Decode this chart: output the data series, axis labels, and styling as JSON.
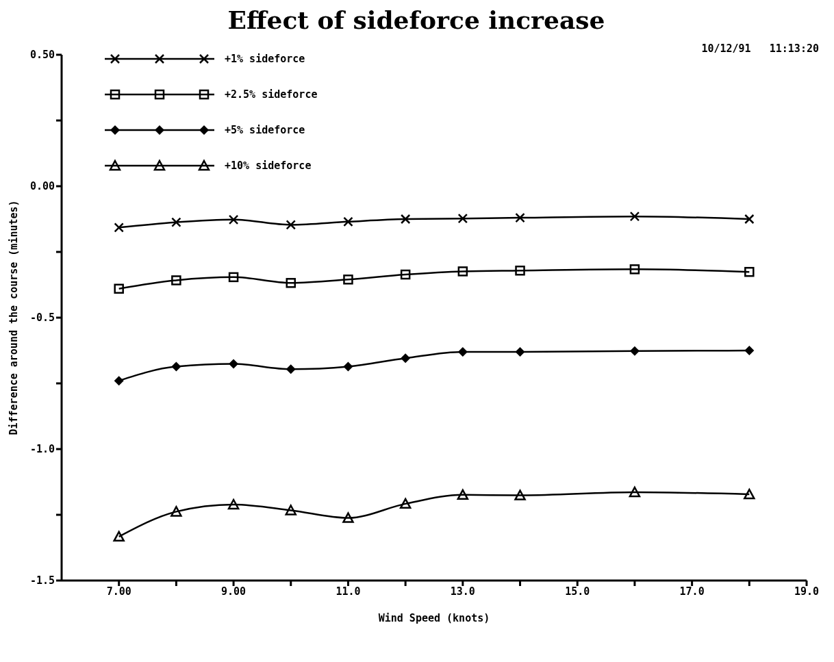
{
  "chart_data": {
    "type": "line",
    "title": "Effect of sideforce increase",
    "annotations": [
      "10/12/91   11:13:20"
    ],
    "xlabel": "Wind Speed (knots)",
    "ylabel": "Difference around the course (minutes)",
    "x": [
      7,
      8,
      9,
      10,
      11,
      12,
      13,
      14,
      16,
      18
    ],
    "series": [
      {
        "name": "+1% sideforce",
        "color": "#000000",
        "marker": "cross",
        "values": [
          -0.157,
          -0.137,
          -0.127,
          -0.147,
          -0.135,
          -0.125,
          -0.123,
          -0.12,
          -0.115,
          -0.125
        ]
      },
      {
        "name": "+2.5% sideforce",
        "color": "#000000",
        "marker": "square",
        "values": [
          -0.39,
          -0.358,
          -0.346,
          -0.368,
          -0.355,
          -0.336,
          -0.324,
          -0.321,
          -0.316,
          -0.326
        ]
      },
      {
        "name": "+5% sideforce",
        "color": "#000000",
        "marker": "diamond",
        "values": [
          -0.74,
          -0.686,
          -0.676,
          -0.696,
          -0.686,
          -0.654,
          -0.63,
          -0.63,
          -0.627,
          -0.625
        ]
      },
      {
        "name": "+10% sideforce",
        "color": "#000000",
        "marker": "triangle",
        "values": [
          -1.333,
          -1.238,
          -1.211,
          -1.233,
          -1.262,
          -1.208,
          -1.174,
          -1.176,
          -1.164,
          -1.172
        ]
      }
    ],
    "xlim": [
      6,
      19
    ],
    "xticks": [
      {
        "value": 7,
        "label": "7.00"
      },
      {
        "value": 8,
        "label": null
      },
      {
        "value": 9,
        "label": "9.00"
      },
      {
        "value": 10,
        "label": null
      },
      {
        "value": 11,
        "label": "11.0"
      },
      {
        "value": 12,
        "label": null
      },
      {
        "value": 13,
        "label": "13.0"
      },
      {
        "value": 14,
        "label": null
      },
      {
        "value": 15,
        "label": "15.0"
      },
      {
        "value": 16,
        "label": null
      },
      {
        "value": 17,
        "label": "17.0"
      },
      {
        "value": 18,
        "label": null
      },
      {
        "value": 19,
        "label": "19.0"
      }
    ],
    "ylim": [
      -1.5,
      0.5
    ],
    "yticks": [
      {
        "value": -1.5,
        "label": "-1.5"
      },
      {
        "value": -1.25,
        "label": null
      },
      {
        "value": -1,
        "label": "-1.0"
      },
      {
        "value": -0.75,
        "label": null
      },
      {
        "value": -0.5,
        "label": "-0.5"
      },
      {
        "value": -0.25,
        "label": null
      },
      {
        "value": 0,
        "label": "0.00"
      },
      {
        "value": 0.25,
        "label": null
      },
      {
        "value": 0.5,
        "label": "0.50"
      }
    ],
    "grid": false,
    "legend": "top left",
    "line_style": "solid"
  }
}
